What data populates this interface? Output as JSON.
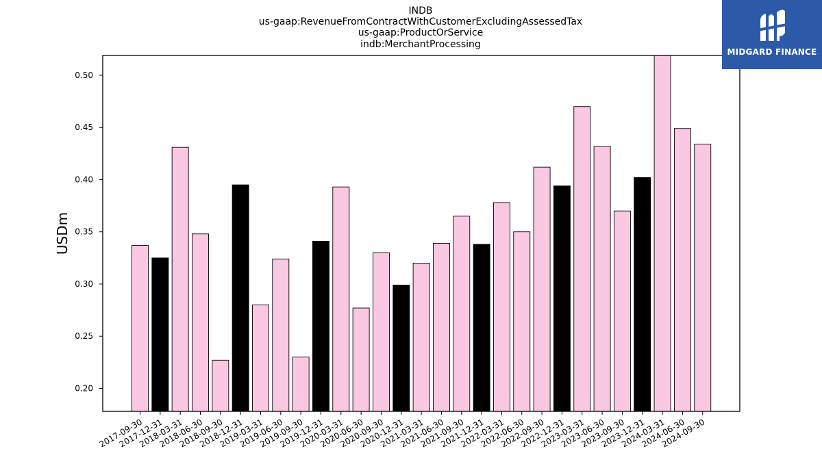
{
  "chart_data": {
    "type": "bar",
    "title_lines": [
      "INDB",
      "us-gaap:RevenueFromContractWithCustomerExcludingAssessedTax",
      "us-gaap:ProductOrService",
      "indb:MerchantProcessing"
    ],
    "xlabel": "",
    "ylabel": "USDm",
    "ylim": [
      0.178,
      0.519
    ],
    "yticks": [
      "0.20",
      "0.25",
      "0.30",
      "0.35",
      "0.40",
      "0.45",
      "0.50"
    ],
    "categories": [
      "2017-09-30",
      "2017-12-31",
      "2018-03-31",
      "2018-06-30",
      "2018-09-30",
      "2018-12-31",
      "2019-03-31",
      "2019-06-30",
      "2019-09-30",
      "2019-12-31",
      "2020-03-31",
      "2020-06-30",
      "2020-09-30",
      "2020-12-31",
      "2021-03-31",
      "2021-06-30",
      "2021-09-30",
      "2021-12-31",
      "2022-03-31",
      "2022-06-30",
      "2022-09-30",
      "2022-12-31",
      "2023-03-31",
      "2023-06-30",
      "2023-09-30",
      "2023-12-31",
      "2024-03-31",
      "2024-06-30",
      "2024-09-30"
    ],
    "values": [
      0.337,
      0.325,
      0.431,
      0.348,
      0.227,
      0.395,
      0.28,
      0.324,
      0.23,
      0.341,
      0.393,
      0.277,
      0.33,
      0.299,
      0.32,
      0.339,
      0.365,
      0.338,
      0.378,
      0.35,
      0.412,
      0.394,
      0.47,
      0.432,
      0.37,
      0.402,
      0.521,
      0.449,
      0.434
    ],
    "bar_colors": {
      "normal": "#fbc8e3",
      "year_end": "#000000",
      "edge": "#000000"
    },
    "grid": false,
    "legend": "none"
  },
  "logo": {
    "text": "MIDGARD FINANCE",
    "background": "#2c5aa8",
    "mark_icon": "midgard-logo-icon"
  }
}
